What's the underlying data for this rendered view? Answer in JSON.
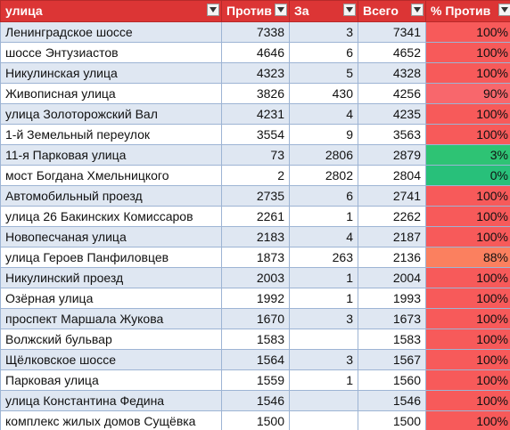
{
  "header": {
    "col_street": "улица",
    "col_against": "Против",
    "col_for": "За",
    "col_total": "Всего",
    "col_pct": "% Против"
  },
  "pct_colors": {
    "high": "#f75a5a",
    "mid_90": "#f8676c",
    "mid_88": "#fb805f",
    "low": "#2ec374",
    "zero": "#28c07a"
  },
  "rows": [
    {
      "street": "Ленинградское шоссе",
      "against": "7338",
      "for": "3",
      "total": "7341",
      "pct": "100%",
      "color": "#f75a5a"
    },
    {
      "street": "шоссе Энтузиастов",
      "against": "4646",
      "for": "6",
      "total": "4652",
      "pct": "100%",
      "color": "#f75a5a"
    },
    {
      "street": "Никулинская улица",
      "against": "4323",
      "for": "5",
      "total": "4328",
      "pct": "100%",
      "color": "#f75a5a"
    },
    {
      "street": "Живописная улица",
      "against": "3826",
      "for": "430",
      "total": "4256",
      "pct": "90%",
      "color": "#f8676c"
    },
    {
      "street": "улица Золоторожский Вал",
      "against": "4231",
      "for": "4",
      "total": "4235",
      "pct": "100%",
      "color": "#f75a5a"
    },
    {
      "street": "1-й Земельный переулок",
      "against": "3554",
      "for": "9",
      "total": "3563",
      "pct": "100%",
      "color": "#f75a5a"
    },
    {
      "street": "11-я Парковая улица",
      "against": "73",
      "for": "2806",
      "total": "2879",
      "pct": "3%",
      "color": "#2ec374"
    },
    {
      "street": "мост Богдана Хмельницкого",
      "against": "2",
      "for": "2802",
      "total": "2804",
      "pct": "0%",
      "color": "#28c07a"
    },
    {
      "street": "Автомобильный проезд",
      "against": "2735",
      "for": "6",
      "total": "2741",
      "pct": "100%",
      "color": "#f75a5a"
    },
    {
      "street": "улица 26 Бакинских Комиссаров",
      "against": "2261",
      "for": "1",
      "total": "2262",
      "pct": "100%",
      "color": "#f75a5a"
    },
    {
      "street": "Новопесчаная улица",
      "against": "2183",
      "for": "4",
      "total": "2187",
      "pct": "100%",
      "color": "#f75a5a"
    },
    {
      "street": "улица Героев Панфиловцев",
      "against": "1873",
      "for": "263",
      "total": "2136",
      "pct": "88%",
      "color": "#fb805f"
    },
    {
      "street": "Никулинский проезд",
      "against": "2003",
      "for": "1",
      "total": "2004",
      "pct": "100%",
      "color": "#f75a5a"
    },
    {
      "street": "Озёрная улица",
      "against": "1992",
      "for": "1",
      "total": "1993",
      "pct": "100%",
      "color": "#f75a5a"
    },
    {
      "street": "проспект Маршала Жукова",
      "against": "1670",
      "for": "3",
      "total": "1673",
      "pct": "100%",
      "color": "#f75a5a"
    },
    {
      "street": "Волжский бульвар",
      "against": "1583",
      "for": "",
      "total": "1583",
      "pct": "100%",
      "color": "#f75a5a"
    },
    {
      "street": "Щёлковское шоссе",
      "against": "1564",
      "for": "3",
      "total": "1567",
      "pct": "100%",
      "color": "#f75a5a"
    },
    {
      "street": "Парковая улица",
      "against": "1559",
      "for": "1",
      "total": "1560",
      "pct": "100%",
      "color": "#f75a5a"
    },
    {
      "street": "улица Константина Федина",
      "against": "1546",
      "for": "",
      "total": "1546",
      "pct": "100%",
      "color": "#f75a5a"
    },
    {
      "street": "комплекс жилых домов Сущёвка",
      "against": "1500",
      "for": "",
      "total": "1500",
      "pct": "100%",
      "color": "#f75a5a"
    }
  ]
}
